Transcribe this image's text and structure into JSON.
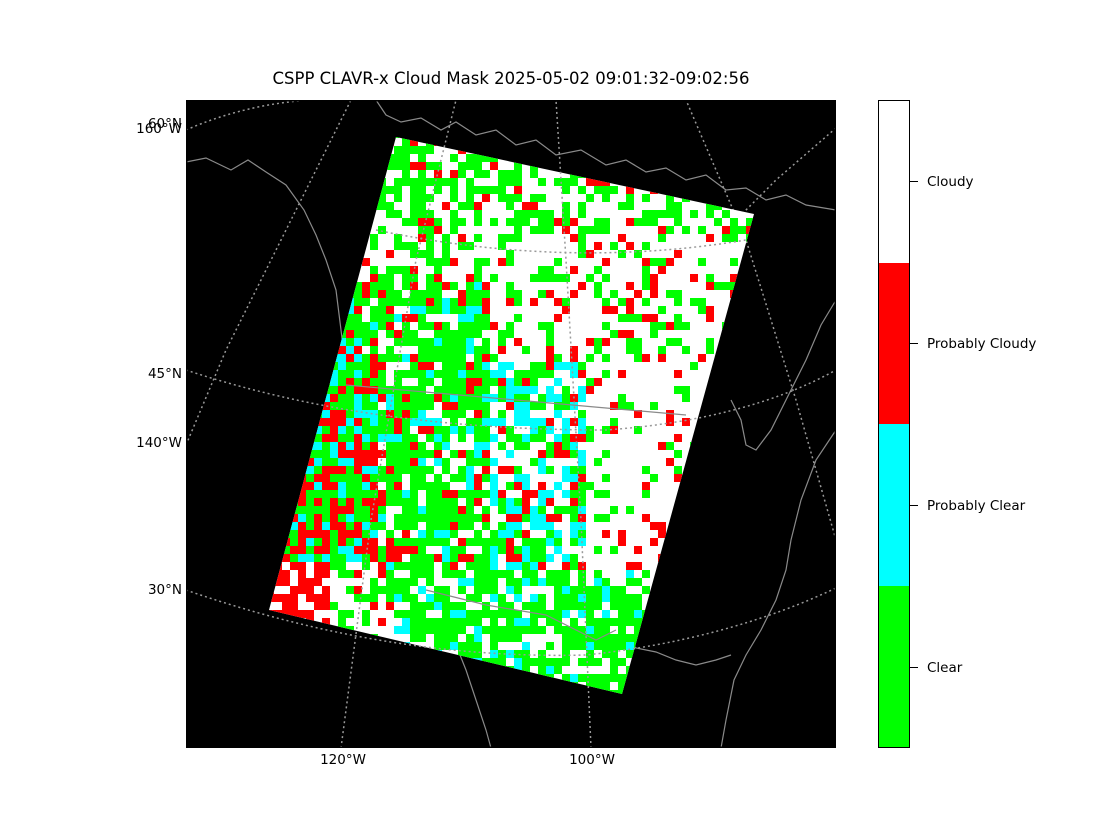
{
  "title": "CSPP CLAVR-x Cloud Mask 2025-05-02 09:01:32-09:02:56",
  "map": {
    "background": "#000000",
    "coastline_color": "#8a8a8a",
    "grid_color": "#999999",
    "lat_labels": [
      "60°N",
      "45°N",
      "30°N"
    ],
    "lon_labels_left": [
      "160°W",
      "140°W"
    ],
    "lon_labels_bottom": [
      "120°W",
      "100°W"
    ]
  },
  "colorbar": {
    "categories": [
      {
        "label": "Cloudy",
        "color": "#ffffff"
      },
      {
        "label": "Probably Cloudy",
        "color": "#ff0000"
      },
      {
        "label": "Probably Clear",
        "color": "#00ffff"
      },
      {
        "label": "Clear",
        "color": "#00ff00"
      }
    ]
  }
}
